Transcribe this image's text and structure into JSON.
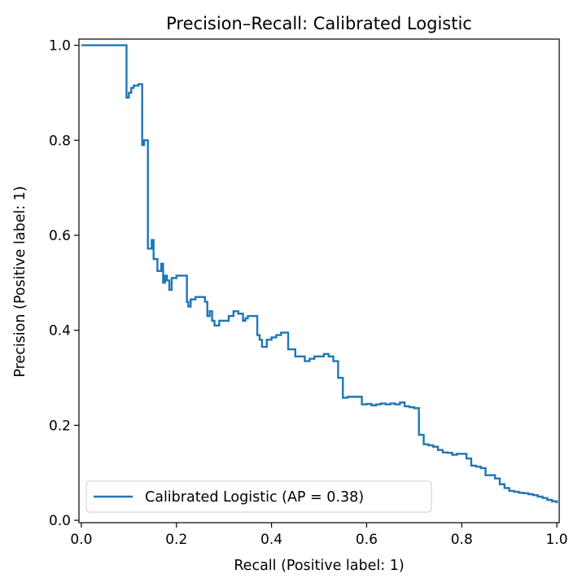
{
  "chart_data": {
    "type": "line",
    "drawstyle": "steps-post",
    "title": "Precision–Recall: Calibrated Logistic",
    "xlabel": "Recall (Positive label: 1)",
    "ylabel": "Precision (Positive label: 1)",
    "xlim": [
      -0.005,
      1.005
    ],
    "ylim": [
      -0.005,
      1.013
    ],
    "xticks": [
      0.0,
      0.2,
      0.4,
      0.6,
      0.8,
      1.0
    ],
    "xtick_labels": [
      "0.0",
      "0.2",
      "0.4",
      "0.6",
      "0.8",
      "1.0"
    ],
    "yticks": [
      0.0,
      0.2,
      0.4,
      0.6,
      0.8,
      1.0
    ],
    "ytick_labels": [
      "0.0",
      "0.2",
      "0.4",
      "0.6",
      "0.8",
      "1.0"
    ],
    "grid": false,
    "legend_position": "lower-left",
    "series": [
      {
        "name": "Calibrated Logistic (AP = 0.38)",
        "color": "#1f77b4",
        "x": [
          0.0,
          0.095,
          0.095,
          0.1,
          0.105,
          0.11,
          0.12,
          0.128,
          0.128,
          0.132,
          0.136,
          0.14,
          0.14,
          0.148,
          0.152,
          0.16,
          0.168,
          0.172,
          0.176,
          0.18,
          0.185,
          0.19,
          0.2,
          0.21,
          0.22,
          0.222,
          0.225,
          0.23,
          0.24,
          0.25,
          0.26,
          0.265,
          0.27,
          0.275,
          0.28,
          0.29,
          0.3,
          0.31,
          0.32,
          0.33,
          0.34,
          0.345,
          0.35,
          0.36,
          0.37,
          0.375,
          0.38,
          0.39,
          0.4,
          0.41,
          0.42,
          0.43,
          0.435,
          0.44,
          0.45,
          0.46,
          0.47,
          0.48,
          0.49,
          0.5,
          0.51,
          0.52,
          0.53,
          0.54,
          0.545,
          0.55,
          0.56,
          0.57,
          0.58,
          0.59,
          0.6,
          0.61,
          0.62,
          0.63,
          0.64,
          0.65,
          0.66,
          0.67,
          0.68,
          0.69,
          0.7,
          0.71,
          0.72,
          0.73,
          0.74,
          0.75,
          0.76,
          0.77,
          0.78,
          0.79,
          0.8,
          0.81,
          0.82,
          0.83,
          0.84,
          0.85,
          0.86,
          0.87,
          0.88,
          0.89,
          0.9,
          0.91,
          0.92,
          0.93,
          0.94,
          0.95,
          0.96,
          0.97,
          0.98,
          0.99,
          1.0
        ],
        "y": [
          1.0,
          1.0,
          0.89,
          0.9,
          0.91,
          0.915,
          0.918,
          0.8,
          0.79,
          0.8,
          0.8,
          0.59,
          0.572,
          0.59,
          0.55,
          0.525,
          0.54,
          0.5,
          0.515,
          0.505,
          0.485,
          0.51,
          0.515,
          0.515,
          0.515,
          0.46,
          0.45,
          0.465,
          0.47,
          0.47,
          0.46,
          0.43,
          0.44,
          0.42,
          0.41,
          0.42,
          0.42,
          0.43,
          0.44,
          0.435,
          0.42,
          0.425,
          0.43,
          0.43,
          0.39,
          0.38,
          0.365,
          0.38,
          0.385,
          0.39,
          0.395,
          0.395,
          0.36,
          0.36,
          0.345,
          0.345,
          0.335,
          0.34,
          0.345,
          0.345,
          0.35,
          0.345,
          0.335,
          0.3,
          0.3,
          0.258,
          0.26,
          0.26,
          0.26,
          0.244,
          0.245,
          0.242,
          0.244,
          0.246,
          0.244,
          0.246,
          0.244,
          0.248,
          0.24,
          0.238,
          0.236,
          0.18,
          0.16,
          0.158,
          0.155,
          0.148,
          0.143,
          0.142,
          0.138,
          0.14,
          0.14,
          0.13,
          0.115,
          0.113,
          0.11,
          0.095,
          0.095,
          0.088,
          0.076,
          0.068,
          0.062,
          0.06,
          0.058,
          0.057,
          0.055,
          0.053,
          0.05,
          0.047,
          0.043,
          0.04,
          0.036
        ]
      }
    ]
  }
}
